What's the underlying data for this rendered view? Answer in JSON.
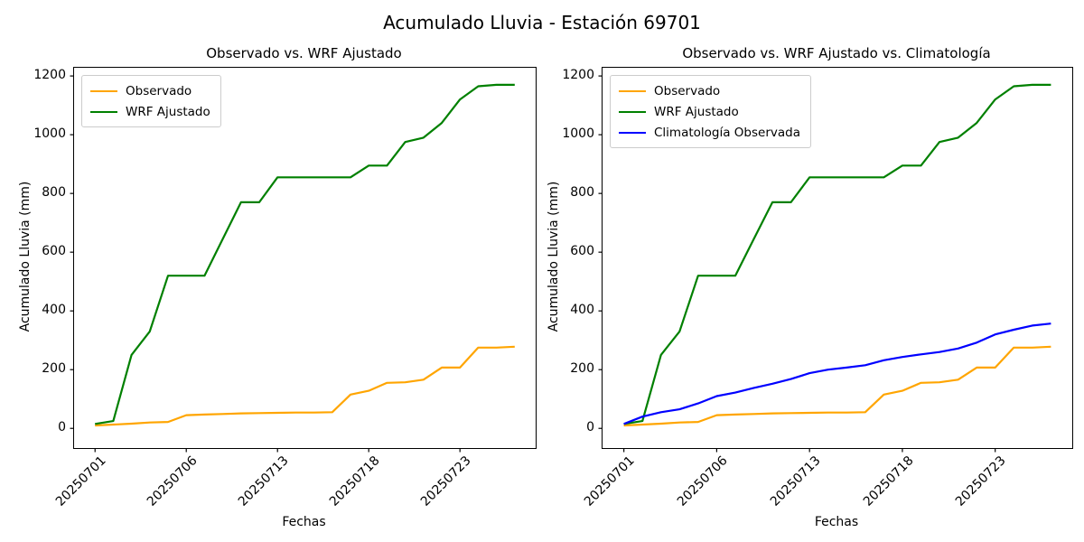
{
  "figure": {
    "title": "Acumulado Lluvia - Estación 69701",
    "station_id": "69701"
  },
  "chart_data": [
    {
      "type": "line",
      "title": "Observado vs. WRF Ajustado",
      "xlabel": "Fechas",
      "ylabel": "Acumulado Lluvia (mm)",
      "grid": false,
      "legend_position": "upper-left",
      "xlim": [
        -1.15,
        24.15
      ],
      "ylim": [
        -67,
        1228
      ],
      "x_tick_rotation": 45,
      "y_ticks": [
        0,
        200,
        400,
        600,
        800,
        1000,
        1200
      ],
      "x_ticks": [
        {
          "index": 0,
          "label": "20250701"
        },
        {
          "index": 5,
          "label": "20250706"
        },
        {
          "index": 10,
          "label": "20250713"
        },
        {
          "index": 15,
          "label": "20250718"
        },
        {
          "index": 20,
          "label": "20250723"
        }
      ],
      "x_index": [
        0,
        1,
        2,
        3,
        4,
        5,
        6,
        7,
        8,
        9,
        10,
        11,
        12,
        13,
        14,
        15,
        16,
        17,
        18,
        19,
        20,
        21,
        22,
        23
      ],
      "series": [
        {
          "name": "Observado",
          "color": "#FFA500",
          "values": [
            10,
            13,
            16,
            20,
            22,
            45,
            47,
            49,
            51,
            52,
            53,
            54,
            54,
            55,
            115,
            128,
            155,
            157,
            166,
            207,
            207,
            275,
            275,
            278
          ]
        },
        {
          "name": "WRF Ajustado",
          "color": "#008000",
          "values": [
            15,
            25,
            250,
            330,
            520,
            520,
            520,
            645,
            770,
            770,
            855,
            855,
            855,
            855,
            855,
            895,
            895,
            975,
            990,
            1040,
            1120,
            1165,
            1170,
            1170
          ]
        }
      ]
    },
    {
      "type": "line",
      "title": "Observado vs. WRF Ajustado vs. Climatología",
      "xlabel": "Fechas",
      "ylabel": "Acumulado Lluvia (mm)",
      "grid": false,
      "legend_position": "upper-left",
      "xlim": [
        -1.15,
        24.15
      ],
      "ylim": [
        -67,
        1228
      ],
      "x_tick_rotation": 45,
      "y_ticks": [
        0,
        200,
        400,
        600,
        800,
        1000,
        1200
      ],
      "x_ticks": [
        {
          "index": 0,
          "label": "20250701"
        },
        {
          "index": 5,
          "label": "20250706"
        },
        {
          "index": 10,
          "label": "20250713"
        },
        {
          "index": 15,
          "label": "20250718"
        },
        {
          "index": 20,
          "label": "20250723"
        }
      ],
      "x_index": [
        0,
        1,
        2,
        3,
        4,
        5,
        6,
        7,
        8,
        9,
        10,
        11,
        12,
        13,
        14,
        15,
        16,
        17,
        18,
        19,
        20,
        21,
        22,
        23
      ],
      "series": [
        {
          "name": "Observado",
          "color": "#FFA500",
          "values": [
            10,
            13,
            16,
            20,
            22,
            45,
            47,
            49,
            51,
            52,
            53,
            54,
            54,
            55,
            115,
            128,
            155,
            157,
            166,
            207,
            207,
            275,
            275,
            278
          ]
        },
        {
          "name": "WRF Ajustado",
          "color": "#008000",
          "values": [
            15,
            25,
            250,
            330,
            520,
            520,
            520,
            645,
            770,
            770,
            855,
            855,
            855,
            855,
            855,
            895,
            895,
            975,
            990,
            1040,
            1120,
            1165,
            1170,
            1170
          ]
        },
        {
          "name": "Climatología Observada",
          "color": "#0000FF",
          "values": [
            15,
            40,
            55,
            65,
            85,
            110,
            122,
            138,
            152,
            168,
            188,
            200,
            207,
            215,
            232,
            243,
            252,
            260,
            272,
            292,
            320,
            336,
            350,
            357
          ]
        }
      ]
    }
  ]
}
